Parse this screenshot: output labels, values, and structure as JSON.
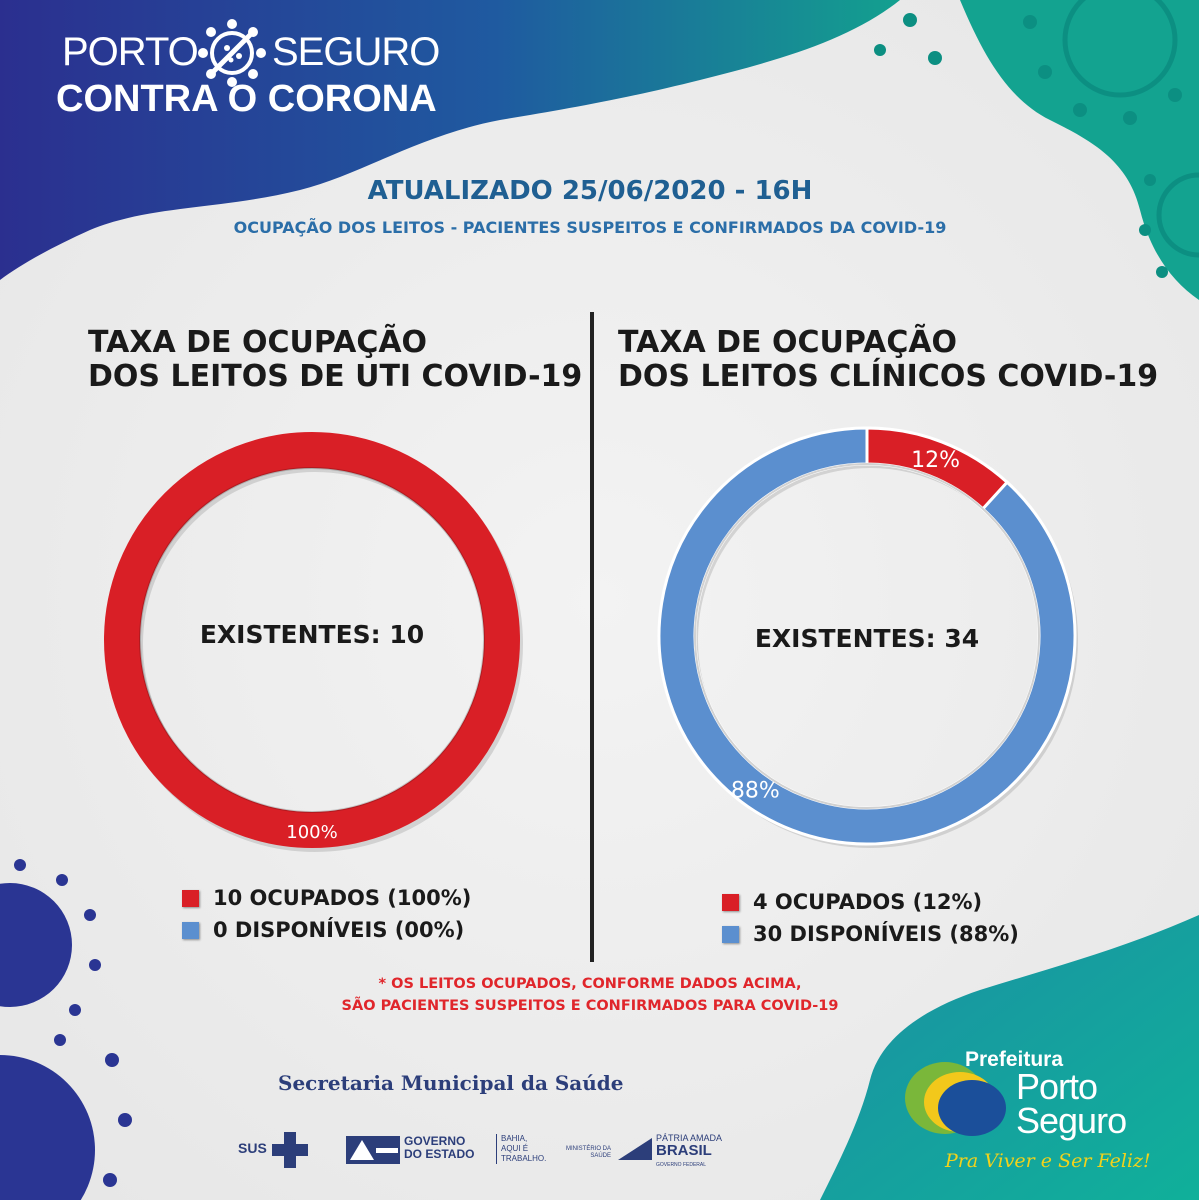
{
  "header": {
    "brand_line1_a": "PORTO",
    "brand_line1_b": "SEGURO",
    "brand_line2": "CONTRA O CORONA",
    "updated": "ATUALIZADO 25/06/2020 - 16H",
    "subtitle": "OCUPAÇÃO DOS LEITOS - PACIENTES SUSPEITOS E CONFIRMADOS DA COVID-19"
  },
  "colors": {
    "occupied": "#d91f26",
    "available": "#5b8fcf",
    "header_blue": "#2a3593",
    "teal": "#12a896"
  },
  "chart_data": [
    {
      "type": "pie",
      "variant": "donut",
      "title_line1": "TAXA DE OCUPAÇÃO",
      "title_line2": "DOS LEITOS DE UTI COVID-19",
      "center_label": "EXISTENTES: 10",
      "slices": [
        {
          "name": "OCUPADOS",
          "value": 10,
          "percent_label": "100%",
          "color": "#d91f26"
        },
        {
          "name": "DISPONÍVEIS",
          "value": 0,
          "percent_label": "",
          "color": "#5b8fcf"
        }
      ],
      "legend": [
        {
          "text": "10 OCUPADOS (100%)",
          "color": "#d91f26"
        },
        {
          "text": "0 DISPONÍVEIS (00%)",
          "color": "#5b8fcf"
        }
      ]
    },
    {
      "type": "pie",
      "variant": "donut",
      "title_line1": "TAXA DE OCUPAÇÃO",
      "title_line2": "DOS LEITOS CLÍNICOS COVID-19",
      "center_label": "EXISTENTES: 34",
      "slices": [
        {
          "name": "OCUPADOS",
          "value": 4,
          "percent_label": "12%",
          "color": "#d91f26"
        },
        {
          "name": "DISPONÍVEIS",
          "value": 30,
          "percent_label": "88%",
          "color": "#5b8fcf"
        }
      ],
      "legend": [
        {
          "text": "4 OCUPADOS (12%)",
          "color": "#d91f26"
        },
        {
          "text": "30 DISPONÍVEIS (88%)",
          "color": "#5b8fcf"
        }
      ]
    }
  ],
  "note": {
    "line1": "* OS LEITOS OCUPADOS, CONFORME DADOS ACIMA,",
    "line2": "SÃO PACIENTES SUSPEITOS E CONFIRMADOS PARA COVID-19"
  },
  "footer": {
    "secretaria": "Secretaria Municipal da Saúde",
    "sus": "SUS",
    "gov_1": "GOVERNO",
    "gov_2": "DO ESTADO",
    "bahia_1": "BAHIA,",
    "bahia_2": "AQUI É",
    "bahia_3": "TRABALHO.",
    "ministerio_1": "MINISTÉRIO DA",
    "ministerio_2": "SAÚDE",
    "patria": "PÁTRIA AMADA",
    "brasil": "BRASIL",
    "gov_federal": "GOVERNO FEDERAL",
    "prefeitura": "Prefeitura",
    "porto": "Porto",
    "seguro": "Seguro",
    "slogan": "Pra Viver e Ser Feliz!"
  }
}
